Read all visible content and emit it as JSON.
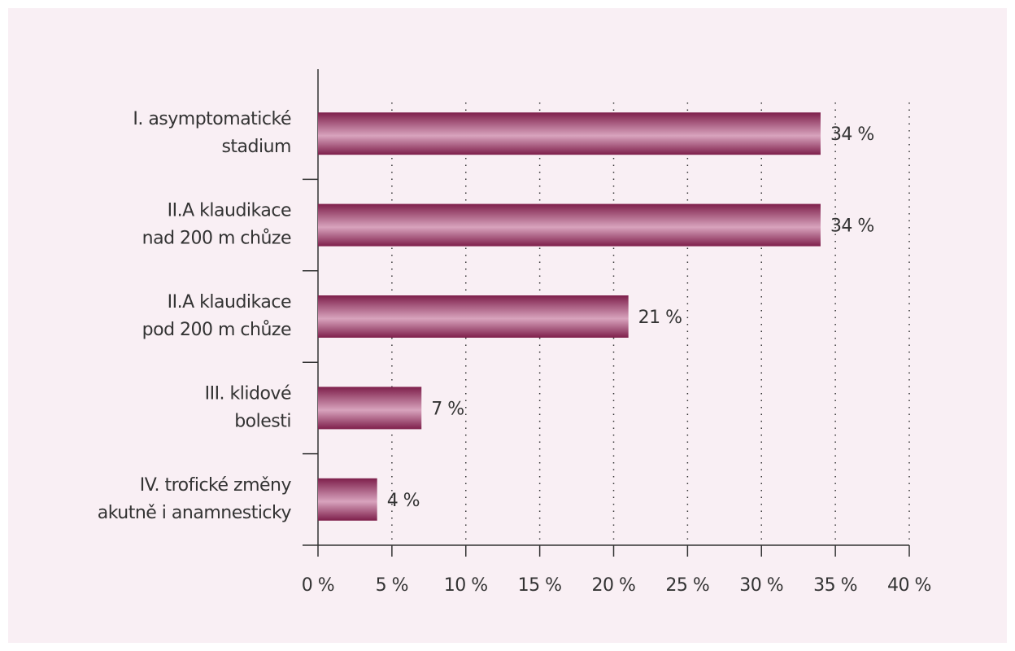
{
  "chart_data": {
    "type": "bar",
    "orientation": "horizontal",
    "categories": [
      [
        "I. asymptomatické",
        "stadium"
      ],
      [
        "II.A klaudikace",
        "nad 200 m chůze"
      ],
      [
        "II.A klaudikace",
        "pod 200 m chůze"
      ],
      [
        "III. klidové",
        "bolesti"
      ],
      [
        "IV. trofické změny",
        "akutně i anamnesticky"
      ]
    ],
    "values": [
      34,
      34,
      21,
      7,
      4
    ],
    "value_labels": [
      "34 %",
      "34 %",
      "21 %",
      "7 %",
      "4 %"
    ],
    "color": "#9a3462",
    "xlim": [
      0,
      40
    ],
    "xticks": [
      {
        "value": 0,
        "label": "0 %"
      },
      {
        "value": 5,
        "label": "5 %"
      },
      {
        "value": 10,
        "label": "10 %"
      },
      {
        "value": 15,
        "label": "15 %"
      },
      {
        "value": 20,
        "label": "20 %"
      },
      {
        "value": 25,
        "label": "25 %"
      },
      {
        "value": 30,
        "label": "30 %"
      },
      {
        "value": 35,
        "label": "35 %"
      },
      {
        "value": 40,
        "label": "40 %"
      }
    ],
    "grid": true
  }
}
